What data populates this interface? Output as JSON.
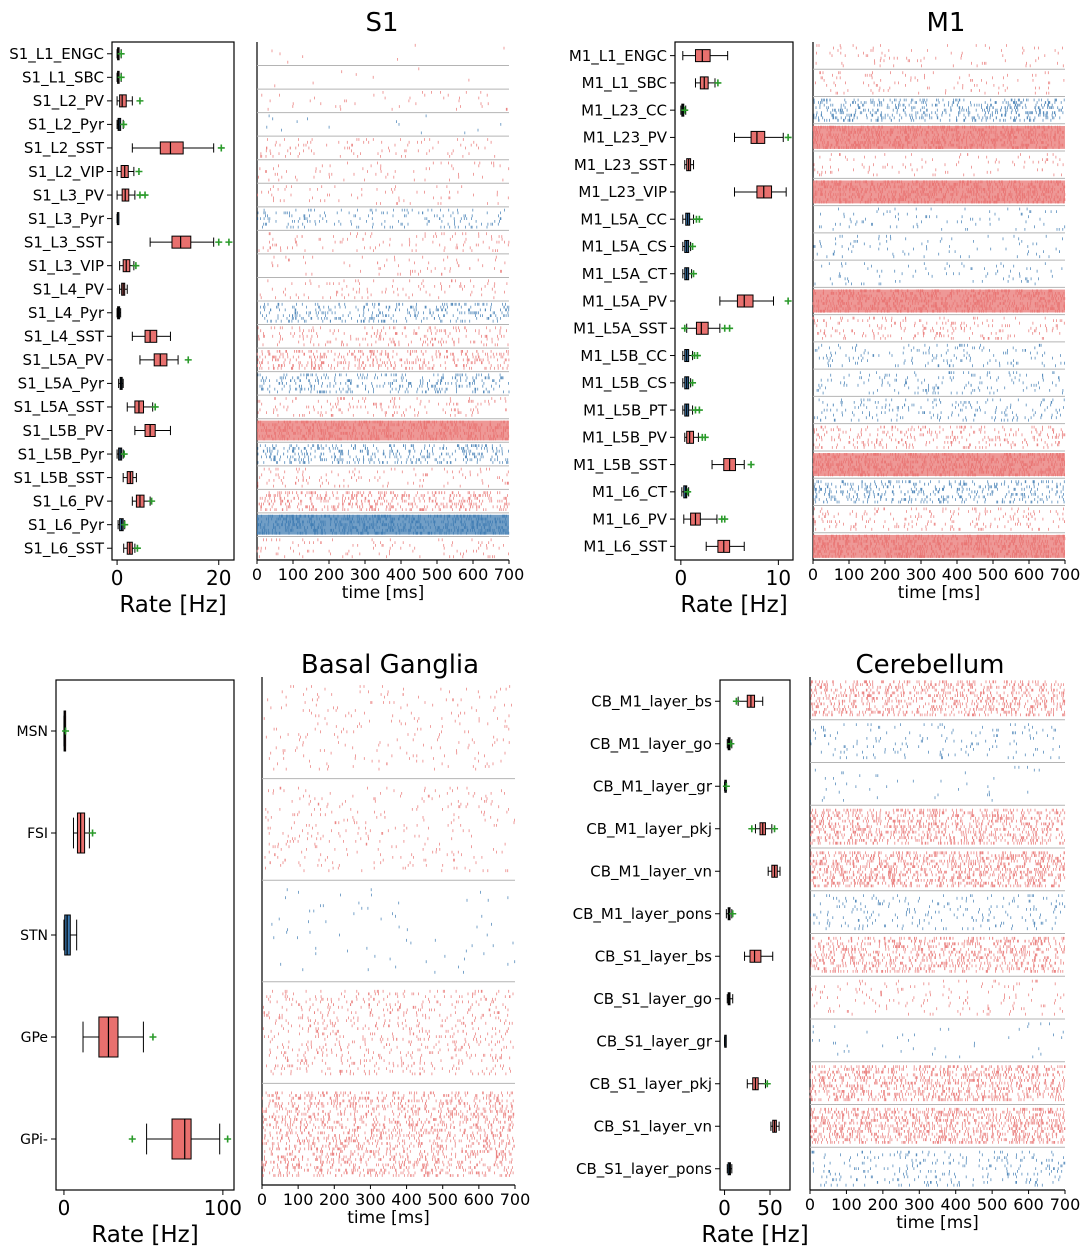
{
  "colors": {
    "excitatory": "#3a78b0",
    "inhibitory": "#e8706e",
    "outlier": "#2a9a2a",
    "separator": "#b4b4b4"
  },
  "chart_data": [
    {
      "id": "s1",
      "type": "box+raster",
      "title": "S1",
      "rate_xlabel": "Rate [Hz]",
      "time_xlabel": "time [ms]",
      "rate_xlim": [
        -1,
        23
      ],
      "rate_ticks": [
        0,
        20
      ],
      "time_xlim": [
        0,
        700
      ],
      "time_ticks": [
        0,
        100,
        200,
        300,
        400,
        500,
        600,
        700
      ],
      "populations": [
        {
          "label": "S1_L1_ENGC",
          "kind": "I",
          "box": [
            0.0,
            0.1,
            0.2,
            0.4,
            0.8
          ],
          "outliers": [
            0.8
          ],
          "raster_density": 0.006
        },
        {
          "label": "S1_L1_SBC",
          "kind": "I",
          "box": [
            0.0,
            0.1,
            0.2,
            0.4,
            0.8
          ],
          "outliers": [
            0.8
          ],
          "raster_density": 0.006
        },
        {
          "label": "S1_L2_PV",
          "kind": "I",
          "box": [
            0.0,
            0.5,
            1.0,
            1.8,
            3.0
          ],
          "outliers": [
            4.5
          ],
          "raster_density": 0.05
        },
        {
          "label": "S1_L2_Pyr",
          "kind": "E",
          "box": [
            0.0,
            0.2,
            0.4,
            0.7,
            1.2
          ],
          "outliers": [
            1.3
          ],
          "raster_density": 0.02
        },
        {
          "label": "S1_L2_SST",
          "kind": "I",
          "box": [
            3.0,
            8.5,
            10.5,
            13.0,
            19.0
          ],
          "outliers": [
            20.5
          ],
          "raster_density": 0.12
        },
        {
          "label": "S1_L2_VIP",
          "kind": "I",
          "box": [
            0.0,
            0.8,
            1.5,
            2.2,
            3.3
          ],
          "outliers": [
            4.3
          ],
          "raster_density": 0.08
        },
        {
          "label": "S1_L3_PV",
          "kind": "I",
          "box": [
            0.0,
            1.0,
            1.6,
            2.3,
            3.5
          ],
          "outliers": [
            4.5,
            5.5
          ],
          "raster_density": 0.08
        },
        {
          "label": "S1_L3_Pyr",
          "kind": "E",
          "box": [
            0.0,
            0.05,
            0.1,
            0.2,
            0.3
          ],
          "outliers": [],
          "raster_density": 0.2
        },
        {
          "label": "S1_L3_SST",
          "kind": "I",
          "box": [
            6.5,
            10.8,
            12.5,
            14.5,
            19.0
          ],
          "outliers": [
            20.0,
            22.0
          ],
          "raster_density": 0.13
        },
        {
          "label": "S1_L3_VIP",
          "kind": "I",
          "box": [
            0.5,
            1.2,
            1.8,
            2.5,
            3.3
          ],
          "outliers": [
            3.7
          ],
          "raster_density": 0.08
        },
        {
          "label": "S1_L4_PV",
          "kind": "I",
          "box": [
            0.5,
            0.9,
            1.2,
            1.5,
            2.0
          ],
          "outliers": [],
          "raster_density": 0.12
        },
        {
          "label": "S1_L4_Pyr",
          "kind": "E",
          "box": [
            0.0,
            0.1,
            0.3,
            0.5,
            0.7
          ],
          "outliers": [],
          "raster_density": 0.4
        },
        {
          "label": "S1_L4_SST",
          "kind": "I",
          "box": [
            3.0,
            5.5,
            6.5,
            7.8,
            10.5
          ],
          "outliers": [],
          "raster_density": 0.25
        },
        {
          "label": "S1_L5A_PV",
          "kind": "I",
          "box": [
            4.5,
            7.3,
            8.5,
            9.8,
            12.0
          ],
          "outliers": [
            14.0
          ],
          "raster_density": 0.5
        },
        {
          "label": "S1_L5A_Pyr",
          "kind": "E",
          "box": [
            0.3,
            0.6,
            0.8,
            1.0,
            1.2
          ],
          "outliers": [],
          "raster_density": 0.4
        },
        {
          "label": "S1_L5A_SST",
          "kind": "I",
          "box": [
            2.0,
            3.5,
            4.3,
            5.2,
            7.0
          ],
          "outliers": [
            7.5
          ],
          "raster_density": 0.2
        },
        {
          "label": "S1_L5B_PV",
          "kind": "I",
          "box": [
            3.5,
            5.5,
            6.5,
            7.5,
            10.5
          ],
          "outliers": [],
          "raster_density": 0.9
        },
        {
          "label": "S1_L5B_Pyr",
          "kind": "E",
          "box": [
            0.0,
            0.3,
            0.6,
            0.9,
            1.2
          ],
          "outliers": [
            1.4
          ],
          "raster_density": 0.5
        },
        {
          "label": "S1_L5B_SST",
          "kind": "I",
          "box": [
            1.2,
            2.0,
            2.6,
            3.1,
            3.8
          ],
          "outliers": [],
          "raster_density": 0.15
        },
        {
          "label": "S1_L6_PV",
          "kind": "I",
          "box": [
            3.0,
            3.8,
            4.5,
            5.3,
            6.5
          ],
          "outliers": [
            6.8
          ],
          "raster_density": 0.6
        },
        {
          "label": "S1_L6_Pyr",
          "kind": "E",
          "box": [
            0.2,
            0.5,
            0.9,
            1.2,
            1.5
          ],
          "outliers": [
            1.5
          ],
          "raster_density": 0.95
        },
        {
          "label": "S1_L6_SST",
          "kind": "I",
          "box": [
            1.3,
            2.0,
            2.5,
            3.0,
            3.5
          ],
          "outliers": [
            4.0
          ],
          "raster_density": 0.12
        }
      ]
    },
    {
      "id": "m1",
      "type": "box+raster",
      "title": "M1",
      "rate_xlabel": "Rate [Hz]",
      "time_xlabel": "time [ms]",
      "rate_xlim": [
        -0.6,
        11.5
      ],
      "rate_ticks": [
        0,
        10
      ],
      "time_xlim": [
        0,
        700
      ],
      "time_ticks": [
        0,
        100,
        200,
        300,
        400,
        500,
        600,
        700
      ],
      "populations": [
        {
          "label": "M1_L1_ENGC",
          "kind": "I",
          "box": [
            0.2,
            1.5,
            2.2,
            3.0,
            4.8
          ],
          "outliers": [],
          "raster_density": 0.08
        },
        {
          "label": "M1_L1_SBC",
          "kind": "I",
          "box": [
            1.5,
            2.0,
            2.4,
            2.8,
            3.5
          ],
          "outliers": [
            3.8
          ],
          "raster_density": 0.1
        },
        {
          "label": "M1_L23_CC",
          "kind": "E",
          "box": [
            0.0,
            0.1,
            0.2,
            0.3,
            0.5
          ],
          "outliers": [
            0.4
          ],
          "raster_density": 0.5
        },
        {
          "label": "M1_L23_PV",
          "kind": "I",
          "box": [
            5.5,
            7.2,
            7.8,
            8.6,
            10.5
          ],
          "outliers": [
            11.0
          ],
          "raster_density": 0.95
        },
        {
          "label": "M1_L23_SST",
          "kind": "I",
          "box": [
            0.4,
            0.6,
            0.8,
            1.0,
            1.3
          ],
          "outliers": [],
          "raster_density": 0.1
        },
        {
          "label": "M1_L23_VIP",
          "kind": "I",
          "box": [
            5.5,
            7.8,
            8.5,
            9.3,
            10.8
          ],
          "outliers": [],
          "raster_density": 0.95
        },
        {
          "label": "M1_L5A_CC",
          "kind": "E",
          "box": [
            0.2,
            0.5,
            0.7,
            0.9,
            1.3
          ],
          "outliers": [
            1.6,
            1.9
          ],
          "raster_density": 0.08
        },
        {
          "label": "M1_L5A_CS",
          "kind": "E",
          "box": [
            0.2,
            0.4,
            0.6,
            0.8,
            1.0
          ],
          "outliers": [
            1.2
          ],
          "raster_density": 0.08
        },
        {
          "label": "M1_L5A_CT",
          "kind": "E",
          "box": [
            0.2,
            0.4,
            0.6,
            0.8,
            1.1
          ],
          "outliers": [
            1.3
          ],
          "raster_density": 0.08
        },
        {
          "label": "M1_L5A_PV",
          "kind": "I",
          "box": [
            4.0,
            5.8,
            6.5,
            7.4,
            9.5
          ],
          "outliers": [
            11.0
          ],
          "raster_density": 0.9
        },
        {
          "label": "M1_L5A_SST",
          "kind": "I",
          "box": [
            0.6,
            1.6,
            2.1,
            2.8,
            4.0
          ],
          "outliers": [
            0.4,
            4.5,
            5.0
          ],
          "raster_density": 0.2
        },
        {
          "label": "M1_L5B_CC",
          "kind": "E",
          "box": [
            0.2,
            0.4,
            0.6,
            0.8,
            1.2
          ],
          "outliers": [
            1.4,
            1.7
          ],
          "raster_density": 0.15
        },
        {
          "label": "M1_L5B_CS",
          "kind": "E",
          "box": [
            0.2,
            0.4,
            0.6,
            0.8,
            1.0
          ],
          "outliers": [
            1.2
          ],
          "raster_density": 0.15
        },
        {
          "label": "M1_L5B_PT",
          "kind": "E",
          "box": [
            0.2,
            0.4,
            0.6,
            0.8,
            1.2
          ],
          "outliers": [
            1.5,
            1.9
          ],
          "raster_density": 0.18
        },
        {
          "label": "M1_L5B_PV",
          "kind": "I",
          "box": [
            0.4,
            0.6,
            0.9,
            1.3,
            1.8
          ],
          "outliers": [
            2.2,
            2.5
          ],
          "raster_density": 0.3
        },
        {
          "label": "M1_L5B_SST",
          "kind": "I",
          "box": [
            3.2,
            4.4,
            5.0,
            5.6,
            6.5
          ],
          "outliers": [
            7.2
          ],
          "raster_density": 0.95
        },
        {
          "label": "M1_L6_CT",
          "kind": "E",
          "box": [
            0.1,
            0.3,
            0.5,
            0.6,
            0.8
          ],
          "outliers": [
            0.7
          ],
          "raster_density": 0.4
        },
        {
          "label": "M1_L6_PV",
          "kind": "I",
          "box": [
            0.3,
            1.0,
            1.5,
            2.0,
            3.7
          ],
          "outliers": [
            4.2,
            4.5
          ],
          "raster_density": 0.2
        },
        {
          "label": "M1_L6_SST",
          "kind": "I",
          "box": [
            2.6,
            3.8,
            4.4,
            5.0,
            6.5
          ],
          "outliers": [],
          "raster_density": 0.95
        }
      ]
    },
    {
      "id": "bg",
      "type": "box+raster",
      "title": "Basal Ganglia",
      "rate_xlabel": "Rate [Hz]",
      "time_xlabel": "time [ms]",
      "rate_xlim": [
        -5,
        107
      ],
      "rate_ticks": [
        0,
        100
      ],
      "time_xlim": [
        0,
        700
      ],
      "time_ticks": [
        0,
        100,
        200,
        300,
        400,
        500,
        600,
        700
      ],
      "populations": [
        {
          "label": "MSN",
          "kind": "I",
          "box": [
            0.0,
            0.1,
            0.3,
            0.6,
            1.0
          ],
          "outliers": [
            1.0
          ],
          "raster_density": 0.06
        },
        {
          "label": "FSI",
          "kind": "I",
          "box": [
            6.0,
            8.5,
            10.5,
            13.0,
            16.0
          ],
          "outliers": [
            18.0
          ],
          "raster_density": 0.08
        },
        {
          "label": "STN",
          "kind": "E",
          "box": [
            0.0,
            0.5,
            2.0,
            4.0,
            8.0
          ],
          "outliers": [],
          "raster_density": 0.02
        },
        {
          "label": "GPe",
          "kind": "I",
          "box": [
            12.0,
            22.0,
            28.0,
            34.0,
            50.0
          ],
          "outliers": [
            56.0
          ],
          "raster_density": 0.2
        },
        {
          "label": "GPi-",
          "kind": "I",
          "box": [
            52.0,
            68.0,
            76.0,
            80.0,
            98.0
          ],
          "outliers": [
            43.0,
            103.0
          ],
          "raster_density": 0.5
        }
      ]
    },
    {
      "id": "cb",
      "type": "box+raster",
      "title": "Cerebellum",
      "rate_xlabel": "Rate [Hz]",
      "time_xlabel": "time [ms]",
      "rate_xlim": [
        -5,
        72
      ],
      "rate_ticks": [
        0,
        50
      ],
      "time_xlim": [
        0,
        700
      ],
      "time_ticks": [
        0,
        100,
        200,
        300,
        400,
        500,
        600,
        700
      ],
      "populations": [
        {
          "label": "CB_M1_layer_bs",
          "kind": "I",
          "box": [
            15.0,
            25.0,
            29.0,
            33.0,
            42.0
          ],
          "outliers": [
            13.0
          ],
          "raster_density": 0.6
        },
        {
          "label": "CB_M1_layer_go",
          "kind": "E",
          "box": [
            3.0,
            4.0,
            5.0,
            6.0,
            8.0
          ],
          "outliers": [
            7.0
          ],
          "raster_density": 0.1
        },
        {
          "label": "CB_M1_layer_gr",
          "kind": "E",
          "box": [
            0.0,
            0.3,
            0.6,
            1.0,
            2.0
          ],
          "outliers": [
            2.0
          ],
          "raster_density": 0.03
        },
        {
          "label": "CB_M1_layer_pkj",
          "kind": "I",
          "box": [
            34.0,
            39.0,
            42.0,
            45.0,
            52.0
          ],
          "outliers": [
            30.0,
            55.0
          ],
          "raster_density": 0.7
        },
        {
          "label": "CB_M1_layer_vn",
          "kind": "I",
          "box": [
            48.0,
            52.0,
            55.0,
            58.0,
            61.0
          ],
          "outliers": [],
          "raster_density": 0.8
        },
        {
          "label": "CB_M1_layer_pons",
          "kind": "E",
          "box": [
            2.0,
            4.0,
            5.0,
            6.0,
            8.0
          ],
          "outliers": [
            9.0
          ],
          "raster_density": 0.15
        },
        {
          "label": "CB_S1_layer_bs",
          "kind": "I",
          "box": [
            22.0,
            28.0,
            33.0,
            40.0,
            53.0
          ],
          "outliers": [],
          "raster_density": 0.6
        },
        {
          "label": "CB_S1_layer_go",
          "kind": "I",
          "box": [
            3.0,
            4.0,
            5.0,
            6.0,
            9.0
          ],
          "outliers": [],
          "raster_density": 0.1
        },
        {
          "label": "CB_S1_layer_gr",
          "kind": "E",
          "box": [
            0.0,
            0.2,
            0.5,
            0.8,
            1.2
          ],
          "outliers": [],
          "raster_density": 0.03
        },
        {
          "label": "CB_S1_layer_pkj",
          "kind": "I",
          "box": [
            25.0,
            31.0,
            34.0,
            37.0,
            45.0
          ],
          "outliers": [
            47.0
          ],
          "raster_density": 0.7
        },
        {
          "label": "CB_S1_layer_vn",
          "kind": "I",
          "box": [
            51.0,
            53.0,
            55.0,
            57.0,
            60.0
          ],
          "outliers": [],
          "raster_density": 0.8
        },
        {
          "label": "CB_S1_layer_pons",
          "kind": "E",
          "box": [
            3.0,
            4.0,
            5.5,
            6.5,
            8.0
          ],
          "outliers": [],
          "raster_density": 0.18
        }
      ]
    }
  ]
}
